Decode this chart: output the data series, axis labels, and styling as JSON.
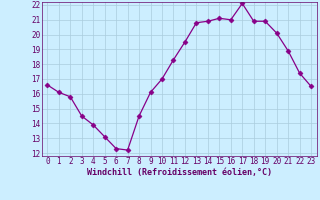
{
  "x": [
    0,
    1,
    2,
    3,
    4,
    5,
    6,
    7,
    8,
    9,
    10,
    11,
    12,
    13,
    14,
    15,
    16,
    17,
    18,
    19,
    20,
    21,
    22,
    23
  ],
  "y": [
    16.6,
    16.1,
    15.8,
    14.5,
    13.9,
    13.1,
    12.3,
    12.2,
    14.5,
    16.1,
    17.0,
    18.3,
    19.5,
    20.8,
    20.9,
    21.1,
    21.0,
    22.1,
    20.9,
    20.9,
    20.1,
    18.9,
    17.4,
    16.5
  ],
  "line_color": "#880088",
  "marker": "D",
  "marker_size": 2.5,
  "bg_color": "#cceeff",
  "grid_color": "#aaccdd",
  "xlabel": "Windchill (Refroidissement éolien,°C)",
  "xlabel_color": "#660066",
  "tick_color": "#660066",
  "ylim": [
    12,
    22
  ],
  "xlim": [
    -0.5,
    23.5
  ],
  "yticks": [
    12,
    13,
    14,
    15,
    16,
    17,
    18,
    19,
    20,
    21,
    22
  ],
  "xticks": [
    0,
    1,
    2,
    3,
    4,
    5,
    6,
    7,
    8,
    9,
    10,
    11,
    12,
    13,
    14,
    15,
    16,
    17,
    18,
    19,
    20,
    21,
    22,
    23
  ],
  "tick_fontsize": 5.5,
  "label_fontsize": 6.0,
  "spine_color": "#660066"
}
